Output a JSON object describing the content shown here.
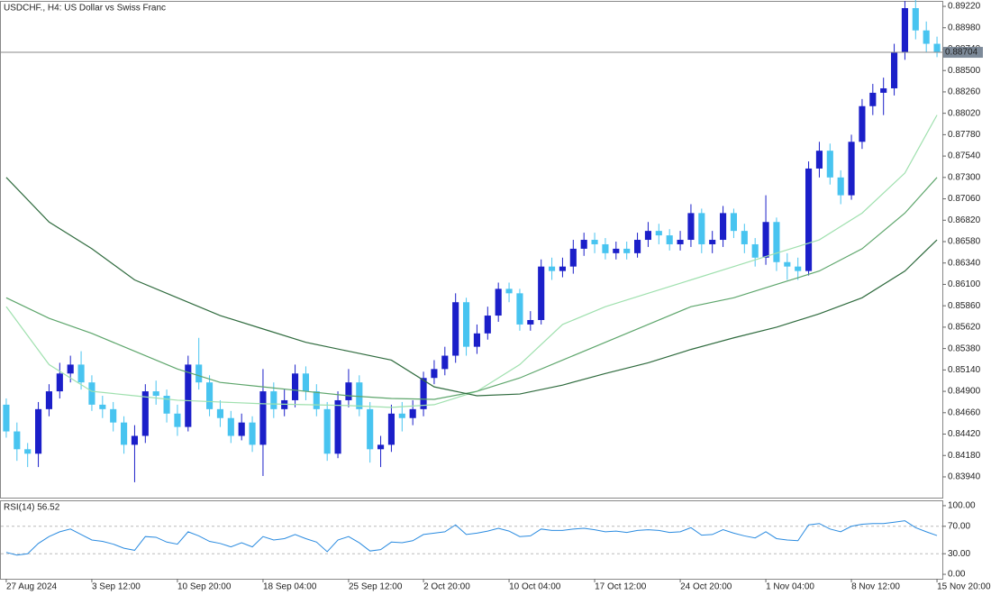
{
  "chart_data": [
    {
      "type": "candlestick",
      "title": "USDCHF., H4:  US Dollar vs Swiss Franc",
      "up_color": "#1b1fc9",
      "down_color": "#48c4f0",
      "open": [
        0.8475,
        0.8445,
        0.8425,
        0.842,
        0.847,
        0.849,
        0.851,
        0.852,
        0.85,
        0.8475,
        0.847,
        0.8455,
        0.843,
        0.844,
        0.849,
        0.8485,
        0.8465,
        0.845,
        0.852,
        0.85,
        0.847,
        0.846,
        0.844,
        0.8455,
        0.843,
        0.849,
        0.847,
        0.848,
        0.851,
        0.849,
        0.847,
        0.842,
        0.848,
        0.85,
        0.847,
        0.8425,
        0.843,
        0.8465,
        0.846,
        0.847,
        0.8505,
        0.8515,
        0.853,
        0.859,
        0.854,
        0.8555,
        0.8575,
        0.8605,
        0.86,
        0.8565,
        0.857,
        0.863,
        0.8625,
        0.863,
        0.865,
        0.866,
        0.8655,
        0.8645,
        0.865,
        0.8645,
        0.866,
        0.867,
        0.8665,
        0.8655,
        0.866,
        0.869,
        0.8655,
        0.866,
        0.869,
        0.867,
        0.8655,
        0.864,
        0.868,
        0.8635,
        0.863,
        0.8625,
        0.874,
        0.876,
        0.873,
        0.871,
        0.877,
        0.881,
        0.8825,
        0.883,
        0.887,
        0.892,
        0.8895,
        0.888
      ],
      "high": [
        0.8482,
        0.8455,
        0.8432,
        0.8478,
        0.8498,
        0.8522,
        0.853,
        0.8535,
        0.8508,
        0.8485,
        0.8478,
        0.8462,
        0.8452,
        0.8498,
        0.8502,
        0.8492,
        0.8475,
        0.853,
        0.855,
        0.8508,
        0.848,
        0.8468,
        0.8465,
        0.8462,
        0.8515,
        0.85,
        0.8492,
        0.852,
        0.8518,
        0.8498,
        0.8478,
        0.849,
        0.8515,
        0.8508,
        0.8478,
        0.844,
        0.8475,
        0.8478,
        0.848,
        0.8512,
        0.8525,
        0.854,
        0.86,
        0.8595,
        0.8565,
        0.8585,
        0.8612,
        0.8612,
        0.8605,
        0.858,
        0.8638,
        0.864,
        0.864,
        0.866,
        0.8668,
        0.8668,
        0.8662,
        0.8658,
        0.8658,
        0.8668,
        0.868,
        0.8678,
        0.8672,
        0.867,
        0.87,
        0.8695,
        0.867,
        0.8698,
        0.8695,
        0.8678,
        0.8662,
        0.871,
        0.8685,
        0.8645,
        0.864,
        0.8748,
        0.877,
        0.8768,
        0.8738,
        0.8778,
        0.8818,
        0.8835,
        0.8842,
        0.888,
        0.8928,
        0.8932,
        0.8905,
        0.8888
      ],
      "low": [
        0.8438,
        0.8412,
        0.8405,
        0.8405,
        0.8462,
        0.8482,
        0.85,
        0.8492,
        0.8468,
        0.846,
        0.8445,
        0.842,
        0.8388,
        0.8432,
        0.8475,
        0.8455,
        0.844,
        0.8445,
        0.8492,
        0.8462,
        0.845,
        0.8432,
        0.8435,
        0.8422,
        0.8395,
        0.846,
        0.8462,
        0.8472,
        0.848,
        0.8462,
        0.8412,
        0.8415,
        0.8472,
        0.8462,
        0.841,
        0.8405,
        0.8422,
        0.8445,
        0.8452,
        0.8462,
        0.8498,
        0.8508,
        0.8522,
        0.853,
        0.8532,
        0.8548,
        0.8568,
        0.859,
        0.8558,
        0.8558,
        0.8565,
        0.8615,
        0.8618,
        0.8622,
        0.8642,
        0.8645,
        0.8638,
        0.8638,
        0.8638,
        0.864,
        0.8652,
        0.8655,
        0.8648,
        0.8648,
        0.8652,
        0.8645,
        0.8645,
        0.8652,
        0.8662,
        0.8645,
        0.863,
        0.8632,
        0.8625,
        0.8615,
        0.8615,
        0.862,
        0.873,
        0.8722,
        0.87,
        0.8705,
        0.8762,
        0.88,
        0.88,
        0.8822,
        0.8862,
        0.8885,
        0.887,
        0.8865
      ],
      "close": [
        0.8445,
        0.8425,
        0.842,
        0.847,
        0.849,
        0.851,
        0.852,
        0.85,
        0.8475,
        0.847,
        0.8455,
        0.843,
        0.844,
        0.849,
        0.8485,
        0.8465,
        0.845,
        0.852,
        0.85,
        0.847,
        0.846,
        0.844,
        0.8455,
        0.843,
        0.849,
        0.847,
        0.848,
        0.851,
        0.849,
        0.847,
        0.842,
        0.848,
        0.85,
        0.847,
        0.8425,
        0.843,
        0.8465,
        0.846,
        0.847,
        0.8505,
        0.8515,
        0.853,
        0.859,
        0.854,
        0.8555,
        0.8575,
        0.8605,
        0.86,
        0.8565,
        0.857,
        0.863,
        0.8625,
        0.863,
        0.865,
        0.866,
        0.8655,
        0.8645,
        0.865,
        0.8645,
        0.866,
        0.867,
        0.8665,
        0.8655,
        0.866,
        0.869,
        0.8655,
        0.866,
        0.869,
        0.867,
        0.8655,
        0.864,
        0.868,
        0.8635,
        0.863,
        0.8625,
        0.874,
        0.876,
        0.873,
        0.871,
        0.877,
        0.881,
        0.8825,
        0.883,
        0.887,
        0.892,
        0.8895,
        0.888,
        0.887
      ],
      "overlays": [
        {
          "color": "#9fe0ae",
          "x": [
            0,
            4,
            8,
            12,
            16,
            20,
            24,
            28,
            32,
            36,
            40,
            44,
            48,
            52,
            56,
            60,
            64,
            68,
            72,
            76,
            80,
            84,
            87
          ],
          "values": [
            0.8585,
            0.852,
            0.849,
            0.8485,
            0.848,
            0.8478,
            0.8476,
            0.8475,
            0.8474,
            0.8472,
            0.8475,
            0.849,
            0.852,
            0.8565,
            0.8585,
            0.86,
            0.8615,
            0.863,
            0.8645,
            0.866,
            0.869,
            0.8735,
            0.88
          ]
        },
        {
          "color": "#5ea66c",
          "x": [
            0,
            4,
            8,
            12,
            16,
            20,
            24,
            28,
            32,
            36,
            40,
            44,
            48,
            52,
            56,
            60,
            64,
            68,
            72,
            76,
            80,
            84,
            87
          ],
          "values": [
            0.8595,
            0.8572,
            0.8555,
            0.8535,
            0.8515,
            0.85,
            0.8495,
            0.849,
            0.8485,
            0.8482,
            0.8481,
            0.849,
            0.8505,
            0.8525,
            0.8545,
            0.8565,
            0.8585,
            0.8595,
            0.861,
            0.8625,
            0.865,
            0.869,
            0.873
          ]
        },
        {
          "color": "#2f6b3e",
          "x": [
            0,
            4,
            8,
            12,
            16,
            20,
            24,
            28,
            32,
            36,
            40,
            44,
            48,
            52,
            56,
            60,
            64,
            68,
            72,
            76,
            80,
            84,
            87
          ],
          "values": [
            0.873,
            0.868,
            0.865,
            0.8615,
            0.8595,
            0.8575,
            0.856,
            0.8545,
            0.8535,
            0.8525,
            0.8495,
            0.8485,
            0.8487,
            0.8497,
            0.851,
            0.8522,
            0.8537,
            0.855,
            0.8562,
            0.8577,
            0.8595,
            0.8625,
            0.866
          ]
        }
      ],
      "current_price": {
        "value": 0.88704,
        "label": "0.88704"
      },
      "xlim": [
        -0.5,
        87.5
      ],
      "ylim": [
        0.83707,
        0.89271
      ],
      "yticks": [
        {
          "value": 0.8922,
          "label": "0.89220"
        },
        {
          "value": 0.8898,
          "label": "0.88980"
        },
        {
          "value": 0.8874,
          "label": "0.88740"
        },
        {
          "value": 0.885,
          "label": "0.88500"
        },
        {
          "value": 0.8826,
          "label": "0.88260"
        },
        {
          "value": 0.8802,
          "label": "0.88020"
        },
        {
          "value": 0.8778,
          "label": "0.87780"
        },
        {
          "value": 0.8754,
          "label": "0.87540"
        },
        {
          "value": 0.873,
          "label": "0.87300"
        },
        {
          "value": 0.8706,
          "label": "0.87060"
        },
        {
          "value": 0.8682,
          "label": "0.86820"
        },
        {
          "value": 0.8658,
          "label": "0.86580"
        },
        {
          "value": 0.8634,
          "label": "0.86340"
        },
        {
          "value": 0.861,
          "label": "0.86100"
        },
        {
          "value": 0.8586,
          "label": "0.85860"
        },
        {
          "value": 0.8562,
          "label": "0.85620"
        },
        {
          "value": 0.8538,
          "label": "0.85380"
        },
        {
          "value": 0.8514,
          "label": "0.85140"
        },
        {
          "value": 0.849,
          "label": "0.84900"
        },
        {
          "value": 0.8466,
          "label": "0.84660"
        },
        {
          "value": 0.8442,
          "label": "0.84420"
        },
        {
          "value": 0.8418,
          "label": "0.84180"
        },
        {
          "value": 0.8394,
          "label": "0.83940"
        }
      ],
      "xticks": [
        {
          "value": 0,
          "label": "27 Aug 2024"
        },
        {
          "value": 8,
          "label": "3 Sep 12:00"
        },
        {
          "value": 16,
          "label": "10 Sep 20:00"
        },
        {
          "value": 24,
          "label": "18 Sep 04:00"
        },
        {
          "value": 32,
          "label": "25 Sep 12:00"
        },
        {
          "value": 39,
          "label": "2 Oct 20:00"
        },
        {
          "value": 47,
          "label": "10 Oct 04:00"
        },
        {
          "value": 55,
          "label": "17 Oct 12:00"
        },
        {
          "value": 63,
          "label": "24 Oct 20:00"
        },
        {
          "value": 71,
          "label": "1 Nov 04:00"
        },
        {
          "value": 79,
          "label": "8 Nov 12:00"
        },
        {
          "value": 87,
          "label": "15 Nov 20:00"
        }
      ]
    },
    {
      "type": "line",
      "title": "RSI(14) 56.52",
      "color": "#2a8be0",
      "values": [
        32,
        28,
        30,
        45,
        55,
        62,
        66,
        58,
        50,
        48,
        44,
        38,
        35,
        55,
        54,
        47,
        44,
        62,
        56,
        48,
        45,
        40,
        46,
        40,
        55,
        50,
        52,
        58,
        52,
        47,
        33,
        50,
        55,
        46,
        34,
        36,
        47,
        46,
        49,
        58,
        60,
        62,
        72,
        58,
        60,
        63,
        67,
        63,
        55,
        56,
        66,
        64,
        64,
        66,
        67,
        65,
        62,
        63,
        61,
        64,
        65,
        64,
        61,
        62,
        68,
        57,
        58,
        65,
        60,
        56,
        53,
        62,
        52,
        50,
        49,
        72,
        74,
        66,
        62,
        70,
        73,
        74,
        74,
        76,
        78,
        68,
        62,
        56.52
      ],
      "levels": [
        70,
        30
      ],
      "xlim": [
        -0.5,
        87.5
      ],
      "ylim": [
        -6.5,
        106.5
      ],
      "yticks": [
        {
          "value": 100,
          "label": "100.00"
        },
        {
          "value": 70,
          "label": "70.00"
        },
        {
          "value": 30,
          "label": "30.00"
        },
        {
          "value": 0,
          "label": "0.00"
        }
      ]
    }
  ]
}
